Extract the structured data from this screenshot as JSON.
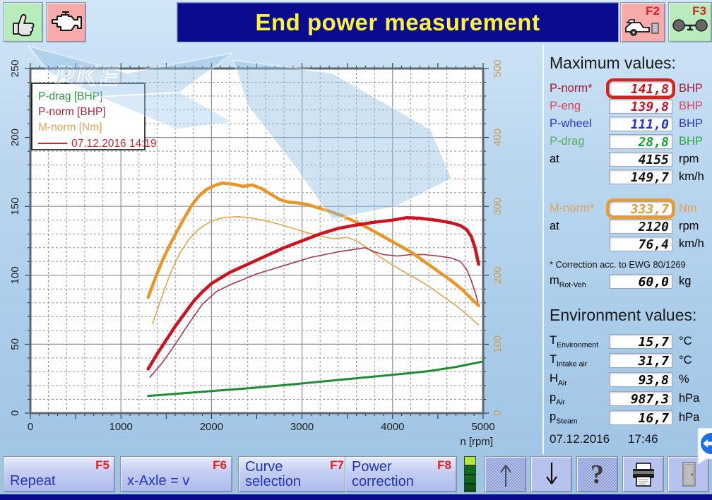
{
  "title_bar": {
    "title": "End power measurement",
    "f2": "F2",
    "f3": "F3"
  },
  "icons": {
    "top_left": [
      "thumb-up-icon",
      "engine-icon"
    ],
    "top_right": [
      "car-roller-icon",
      "axle-icon"
    ],
    "bottom": [
      "up-arrow-icon",
      "down-arrow-icon",
      "question-mark-icon",
      "printer-icon",
      "exit-door-icon"
    ],
    "help_glyph": "?",
    "overlay": "teamviewer-icon"
  },
  "chart_data": {
    "type": "line",
    "title": "",
    "xlabel": "n [rpm]",
    "grid": "on",
    "x_axis": {
      "min": 0,
      "max": 5000,
      "labels": [
        "0",
        "1000",
        "2000",
        "3000",
        "4000",
        "5000"
      ],
      "minor_grid": 200,
      "major_grid": 1000,
      "minor_tick": 100,
      "major_tick": 500
    },
    "left_axis": {
      "min": 0,
      "max": 250,
      "labels": [
        "0",
        "50",
        "100",
        "150",
        "200",
        "250"
      ],
      "minor_grid": 10,
      "major_grid": 50,
      "unit": "BHP",
      "color": "#222222"
    },
    "right_axis": {
      "min": 0,
      "max": 500,
      "labels": [
        "0",
        "100",
        "200",
        "300",
        "400",
        "500"
      ],
      "unit": "Nm",
      "color": "#d29a4a"
    },
    "legend": [
      {
        "label": "P-drag [BHP]",
        "color": "#2f9643"
      },
      {
        "label": "P-norm [BHP]",
        "color": "#b02438"
      },
      {
        "label": "M-norm [Nm]",
        "color": "#e2a853"
      },
      {
        "label": "07.12.2016 14:19",
        "color": "#cf2433",
        "sample": "line"
      }
    ],
    "series": [
      {
        "name": "M-norm previous run",
        "axis": "right",
        "color": "#dca84e",
        "width": 1.6,
        "points": [
          [
            1350,
            130
          ],
          [
            1450,
            168
          ],
          [
            1550,
            204
          ],
          [
            1650,
            232
          ],
          [
            1750,
            252
          ],
          [
            1850,
            266
          ],
          [
            1950,
            275
          ],
          [
            2050,
            281
          ],
          [
            2150,
            284
          ],
          [
            2300,
            285
          ],
          [
            2450,
            283
          ],
          [
            2600,
            279
          ],
          [
            2750,
            274
          ],
          [
            2900,
            268
          ],
          [
            3050,
            262
          ],
          [
            3200,
            257
          ],
          [
            3350,
            253
          ],
          [
            3500,
            255
          ],
          [
            3600,
            250
          ],
          [
            3700,
            242
          ],
          [
            3800,
            232
          ],
          [
            3950,
            219
          ],
          [
            4100,
            207
          ],
          [
            4250,
            196
          ],
          [
            4400,
            184
          ],
          [
            4550,
            170
          ],
          [
            4700,
            156
          ],
          [
            4820,
            143
          ],
          [
            4950,
            128
          ]
        ]
      },
      {
        "name": "P-norm previous run",
        "axis": "left",
        "color": "#a8344c",
        "width": 1.6,
        "points": [
          [
            1320,
            26
          ],
          [
            1450,
            36
          ],
          [
            1600,
            50
          ],
          [
            1750,
            65
          ],
          [
            1900,
            79
          ],
          [
            2050,
            88
          ],
          [
            2200,
            93
          ],
          [
            2350,
            97
          ],
          [
            2500,
            101
          ],
          [
            2650,
            104
          ],
          [
            2800,
            107
          ],
          [
            2950,
            110
          ],
          [
            3100,
            113
          ],
          [
            3250,
            115
          ],
          [
            3400,
            117
          ],
          [
            3550,
            118.5
          ],
          [
            3695,
            120
          ],
          [
            3800,
            117
          ],
          [
            3900,
            115
          ],
          [
            4050,
            114
          ],
          [
            4200,
            115
          ],
          [
            4350,
            115
          ],
          [
            4500,
            114
          ],
          [
            4650,
            112.5
          ],
          [
            4750,
            110
          ],
          [
            4820,
            104
          ],
          [
            4870,
            96
          ],
          [
            4920,
            86
          ],
          [
            4950,
            78
          ]
        ]
      },
      {
        "name": "M-norm 07.12.2016 14:19",
        "axis": "right",
        "color": "#e8962c",
        "width": 4.5,
        "points": [
          [
            1300,
            168
          ],
          [
            1380,
            196
          ],
          [
            1460,
            222
          ],
          [
            1540,
            244
          ],
          [
            1620,
            264
          ],
          [
            1700,
            283
          ],
          [
            1780,
            301
          ],
          [
            1860,
            315
          ],
          [
            1950,
            325
          ],
          [
            2050,
            331
          ],
          [
            2120,
            333.7
          ],
          [
            2250,
            332
          ],
          [
            2350,
            329
          ],
          [
            2450,
            331
          ],
          [
            2550,
            326
          ],
          [
            2650,
            318
          ],
          [
            2750,
            310
          ],
          [
            2850,
            306
          ],
          [
            2950,
            305
          ],
          [
            3050,
            303
          ],
          [
            3150,
            299
          ],
          [
            3300,
            293
          ],
          [
            3450,
            286
          ],
          [
            3600,
            277
          ],
          [
            3750,
            267
          ],
          [
            3900,
            256
          ],
          [
            4050,
            245
          ],
          [
            4200,
            234
          ],
          [
            4350,
            220
          ],
          [
            4500,
            206
          ],
          [
            4650,
            192
          ],
          [
            4780,
            178
          ],
          [
            4870,
            166
          ],
          [
            4950,
            156
          ]
        ]
      },
      {
        "name": "P-norm 07.12.2016 14:19",
        "axis": "left",
        "color": "#cc1420",
        "width": 4.5,
        "points": [
          [
            1300,
            32
          ],
          [
            1400,
            43
          ],
          [
            1500,
            53
          ],
          [
            1600,
            63
          ],
          [
            1700,
            72
          ],
          [
            1800,
            81
          ],
          [
            1900,
            88
          ],
          [
            2000,
            94
          ],
          [
            2100,
            98
          ],
          [
            2200,
            102
          ],
          [
            2400,
            108
          ],
          [
            2600,
            114
          ],
          [
            2800,
            120
          ],
          [
            3000,
            125
          ],
          [
            3200,
            130
          ],
          [
            3400,
            134
          ],
          [
            3600,
            136.5
          ],
          [
            3800,
            138.5
          ],
          [
            4000,
            140
          ],
          [
            4155,
            141.8
          ],
          [
            4300,
            141.4
          ],
          [
            4500,
            139.8
          ],
          [
            4650,
            138
          ],
          [
            4750,
            136
          ],
          [
            4820,
            133
          ],
          [
            4870,
            128
          ],
          [
            4910,
            120
          ],
          [
            4950,
            108
          ]
        ]
      },
      {
        "name": "P-drag",
        "axis": "left",
        "color": "#1e8c35",
        "width": 3,
        "points": [
          [
            1300,
            12.5
          ],
          [
            1600,
            14
          ],
          [
            2000,
            16
          ],
          [
            2400,
            18
          ],
          [
            2800,
            20.3
          ],
          [
            3200,
            22.8
          ],
          [
            3600,
            25.3
          ],
          [
            4000,
            27.8
          ],
          [
            4155,
            28.8
          ],
          [
            4400,
            30.5
          ],
          [
            4700,
            33.5
          ],
          [
            5000,
            37.5
          ]
        ]
      }
    ]
  },
  "watermark": {
    "text": "PKE"
  },
  "max_values": {
    "heading": "Maximum values:",
    "rows": [
      {
        "label": "P-norm*",
        "value": "141,8",
        "unit": "BHP",
        "label_color": "#a21a30",
        "value_color": "#cc1020",
        "unit_color": "#b01a30",
        "highlight": "#dd2016"
      },
      {
        "label": "P-eng",
        "value": "139,8",
        "unit": "BHP",
        "label_color": "#d9475c",
        "value_color": "#cc1020",
        "unit_color": "#d9475c"
      },
      {
        "label": "P-wheel",
        "value": "111,0",
        "unit": "BHP",
        "label_color": "#2b35c0",
        "value_color": "#2232c8",
        "unit_color": "#2b35c0"
      },
      {
        "label": "P-drag",
        "value": "28,8",
        "unit": "BHP",
        "label_color": "#58b060",
        "value_color": "#0f9c30",
        "unit_color": "#27a93c"
      },
      {
        "label": "at",
        "value": "4155",
        "unit": "rpm",
        "label_color": "#1a1a1a",
        "value_color": "#141414",
        "unit_color": "#1a1a1a"
      },
      {
        "label": "",
        "value": "149,7",
        "unit": "km/h",
        "label_color": "#1a1a1a",
        "value_color": "#141414",
        "unit_color": "#1a1a1a"
      },
      {
        "label": "M-norm*",
        "value": "333,7",
        "unit": "Nm",
        "label_color": "#e2a253",
        "value_color": "#e59a2e",
        "unit_color": "#e2a253",
        "highlight": "#ef9b27"
      },
      {
        "label": "at",
        "value": "2120",
        "unit": "rpm",
        "label_color": "#1a1a1a",
        "value_color": "#141414",
        "unit_color": "#1a1a1a"
      },
      {
        "label": "",
        "value": "76,4",
        "unit": "km/h",
        "label_color": "#1a1a1a",
        "value_color": "#141414",
        "unit_color": "#1a1a1a"
      }
    ],
    "note": "* Correction acc. to EWG 80/1269",
    "mass_row": {
      "label": "m",
      "sub": "Rot-Veh",
      "value": "60,0",
      "unit": "kg"
    }
  },
  "environment": {
    "heading": "Environment values:",
    "rows": [
      {
        "label": "T",
        "sub": "Environment",
        "value": "15,7",
        "unit": "°C"
      },
      {
        "label": "T",
        "sub": "Intake air",
        "value": "31,7",
        "unit": "°C"
      },
      {
        "label": "H",
        "sub": "Air",
        "value": "93,8",
        "unit": "%"
      },
      {
        "label": "p",
        "sub": "Air",
        "value": "987,3",
        "unit": "hPa"
      },
      {
        "label": "p",
        "sub": "Steam",
        "value": "16,7",
        "unit": "hPa"
      }
    ]
  },
  "statusbar": {
    "date": "07.12.2016",
    "time": "17:46"
  },
  "toolbar": {
    "buttons": [
      {
        "label": "Repeat",
        "fkey": "F5"
      },
      {
        "label": "x-Axle = v",
        "fkey": "F6"
      },
      {
        "label": "Curve selection",
        "fkey": "F7"
      },
      {
        "label": "Power correction",
        "fkey": "F8"
      }
    ]
  },
  "colors": {
    "title_bg": "#0b0b8f",
    "title_text": "#fdf338",
    "ok_btn_bg": "#b9ecbc",
    "warn_btn_bg": "#f7abab",
    "fkey_red": "#e02020",
    "toolbar_text": "#2234b0",
    "highlight_red": "#dd2016",
    "highlight_orange": "#ef9b27"
  }
}
